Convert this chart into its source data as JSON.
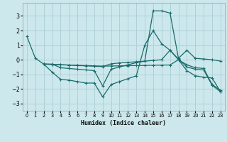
{
  "xlabel": "Humidex (Indice chaleur)",
  "bg_color": "#cce8ec",
  "grid_color": "#aacdd4",
  "line_color": "#1a6b6b",
  "series": {
    "line1": {
      "x": [
        0,
        1,
        2,
        3,
        4,
        5,
        6,
        7,
        8,
        9,
        10,
        11,
        12,
        13,
        14,
        15,
        16,
        17,
        18,
        19,
        20,
        21,
        22,
        23
      ],
      "y": [
        1.6,
        0.1,
        -0.3,
        -0.3,
        -0.55,
        -0.6,
        -0.65,
        -0.7,
        -0.75,
        -1.8,
        -0.65,
        -0.5,
        -0.35,
        -0.2,
        -0.1,
        3.35,
        3.35,
        3.2,
        0.1,
        0.65,
        0.1,
        0.05,
        0.0,
        -0.1
      ]
    },
    "line2": {
      "x": [
        2,
        3,
        4,
        5,
        6,
        7,
        8,
        9,
        10,
        11,
        12,
        13,
        14,
        15,
        16,
        17,
        18,
        19,
        20,
        21,
        22,
        23
      ],
      "y": [
        -0.3,
        -0.85,
        -1.35,
        -1.4,
        -1.5,
        -1.6,
        -1.6,
        -2.55,
        -1.7,
        -1.5,
        -1.3,
        -1.1,
        1.0,
        2.0,
        1.1,
        0.65,
        0.0,
        -0.75,
        -1.1,
        -1.2,
        -1.25,
        -2.2
      ]
    },
    "line3": {
      "x": [
        2,
        3,
        4,
        5,
        6,
        7,
        8,
        9,
        10,
        11,
        12,
        13,
        14,
        15,
        16,
        17,
        18,
        19,
        20,
        21,
        22,
        23
      ],
      "y": [
        -0.3,
        -0.32,
        -0.35,
        -0.37,
        -0.4,
        -0.42,
        -0.45,
        -0.47,
        -0.28,
        -0.22,
        -0.18,
        -0.14,
        -0.1,
        -0.05,
        0.0,
        0.65,
        0.05,
        -0.5,
        -0.65,
        -0.7,
        -1.75,
        -2.2
      ]
    },
    "line4": {
      "x": [
        2,
        3,
        4,
        5,
        6,
        7,
        8,
        9,
        10,
        11,
        12,
        13,
        14,
        15,
        16,
        17,
        18,
        19,
        20,
        21,
        22,
        23
      ],
      "y": [
        -0.3,
        -0.32,
        -0.34,
        -0.36,
        -0.38,
        -0.4,
        -0.42,
        -0.44,
        -0.43,
        -0.42,
        -0.41,
        -0.4,
        -0.39,
        -0.38,
        -0.37,
        -0.36,
        0.0,
        -0.35,
        -0.55,
        -0.6,
        -1.7,
        -2.1
      ]
    }
  },
  "ylim": [
    -3.5,
    3.9
  ],
  "xlim": [
    -0.5,
    23.5
  ],
  "yticks": [
    -3,
    -2,
    -1,
    0,
    1,
    2,
    3
  ],
  "xticks": [
    0,
    1,
    2,
    3,
    4,
    5,
    6,
    7,
    8,
    9,
    10,
    11,
    12,
    13,
    14,
    15,
    16,
    17,
    18,
    19,
    20,
    21,
    22,
    23
  ],
  "ylabel_fontsize": 5.5,
  "xlabel_fontsize": 6.0
}
